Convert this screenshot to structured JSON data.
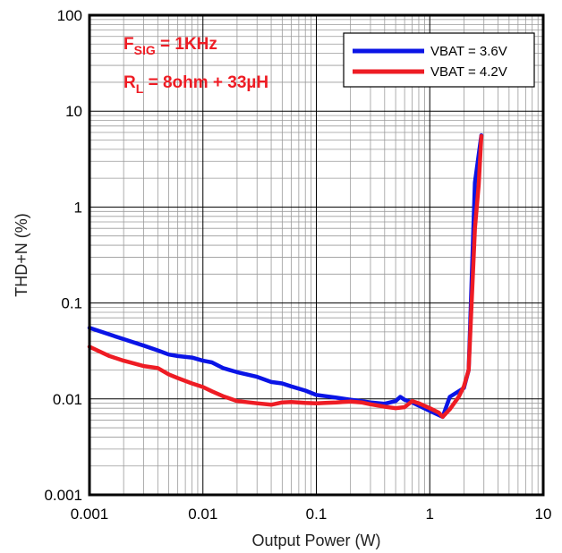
{
  "chart_data": {
    "type": "line",
    "title": "",
    "xlabel": "Output Power (W)",
    "ylabel": "THD+N (%)",
    "x_scale": "log",
    "y_scale": "log",
    "xlim": [
      0.001,
      10
    ],
    "ylim": [
      0.001,
      100
    ],
    "x_ticks": [
      "0.001",
      "0.01",
      "0.1",
      "1",
      "10"
    ],
    "y_ticks": [
      "0.001",
      "0.01",
      "0.1",
      "1",
      "10",
      "100"
    ],
    "grid": true,
    "legend_position": "top-right",
    "annotations": {
      "fsig": {
        "main": "F",
        "sub": "SIG",
        "rest": " = 1KHz"
      },
      "rl": {
        "main": "R",
        "sub": "L",
        "rest": " = 8ohm + 33µH"
      }
    },
    "colors": {
      "vbat36": "#0a14e6",
      "vbat42": "#ee1c24",
      "annotation": "#ee1c24"
    },
    "series": [
      {
        "name": "VBAT = 3.6V",
        "color": "#0a14e6",
        "x": [
          0.001,
          0.0015,
          0.002,
          0.003,
          0.004,
          0.005,
          0.006,
          0.008,
          0.01,
          0.012,
          0.015,
          0.02,
          0.03,
          0.04,
          0.05,
          0.06,
          0.08,
          0.1,
          0.12,
          0.15,
          0.2,
          0.25,
          0.3,
          0.4,
          0.5,
          0.55,
          0.6,
          0.7,
          0.8,
          1.0,
          1.2,
          1.3,
          1.5,
          1.8,
          2.0,
          2.2,
          2.5,
          2.7,
          2.85
        ],
        "y": [
          0.055,
          0.047,
          0.042,
          0.036,
          0.032,
          0.029,
          0.028,
          0.027,
          0.025,
          0.024,
          0.021,
          0.019,
          0.017,
          0.015,
          0.0145,
          0.0135,
          0.0122,
          0.011,
          0.0107,
          0.0103,
          0.0098,
          0.0095,
          0.0092,
          0.0089,
          0.0095,
          0.0105,
          0.0098,
          0.0092,
          0.0085,
          0.0075,
          0.0068,
          0.0065,
          0.0105,
          0.012,
          0.013,
          0.02,
          1.8,
          3.5,
          5.6
        ]
      },
      {
        "name": "VBAT = 4.2V",
        "color": "#ee1c24",
        "x": [
          0.001,
          0.0015,
          0.002,
          0.003,
          0.004,
          0.005,
          0.006,
          0.008,
          0.01,
          0.012,
          0.015,
          0.02,
          0.03,
          0.04,
          0.05,
          0.06,
          0.08,
          0.1,
          0.12,
          0.15,
          0.2,
          0.25,
          0.3,
          0.4,
          0.5,
          0.6,
          0.7,
          0.8,
          1.0,
          1.2,
          1.3,
          1.5,
          1.8,
          2.0,
          2.2,
          2.5,
          2.7,
          2.85
        ],
        "y": [
          0.035,
          0.028,
          0.025,
          0.022,
          0.021,
          0.018,
          0.0165,
          0.0145,
          0.0133,
          0.012,
          0.0107,
          0.0095,
          0.009,
          0.0087,
          0.0092,
          0.0093,
          0.0091,
          0.009,
          0.0091,
          0.0092,
          0.0094,
          0.0092,
          0.0088,
          0.0083,
          0.008,
          0.0082,
          0.0095,
          0.009,
          0.008,
          0.0072,
          0.0065,
          0.0078,
          0.0105,
          0.0135,
          0.02,
          0.6,
          1.7,
          5.5
        ]
      }
    ]
  }
}
